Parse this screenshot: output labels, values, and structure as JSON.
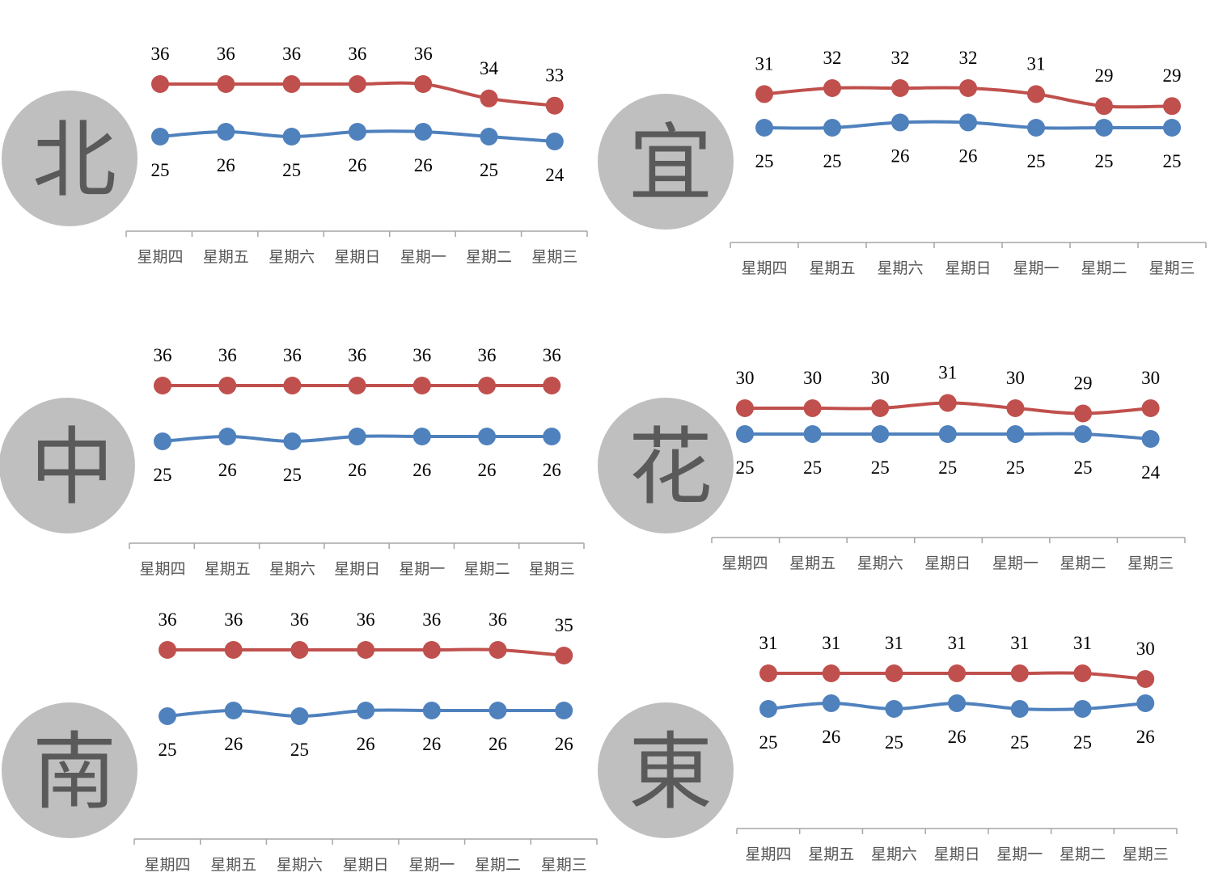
{
  "colors": {
    "high": "#c0504d",
    "low": "#4f81bd",
    "badge": "#bfbfbf",
    "axis": "#a6a6a6"
  },
  "chart_data": [
    {
      "type": "line",
      "region": "北",
      "categories": [
        "星期四",
        "星期五",
        "星期六",
        "星期日",
        "星期一",
        "星期二",
        "星期三"
      ],
      "series": [
        {
          "values": [
            36,
            36,
            36,
            36,
            36,
            34,
            33
          ]
        },
        {
          "values": [
            25,
            26,
            25,
            26,
            26,
            25,
            24
          ]
        }
      ]
    },
    {
      "type": "line",
      "region": "宜",
      "categories": [
        "星期四",
        "星期五",
        "星期六",
        "星期日",
        "星期一",
        "星期二",
        "星期三"
      ],
      "series": [
        {
          "values": [
            31,
            32,
            32,
            32,
            31,
            29,
            29
          ]
        },
        {
          "values": [
            25,
            25,
            26,
            26,
            25,
            25,
            25
          ]
        }
      ]
    },
    {
      "type": "line",
      "region": "中",
      "categories": [
        "星期四",
        "星期五",
        "星期六",
        "星期日",
        "星期一",
        "星期二",
        "星期三"
      ],
      "series": [
        {
          "values": [
            36,
            36,
            36,
            36,
            36,
            36,
            36
          ]
        },
        {
          "values": [
            25,
            26,
            25,
            26,
            26,
            26,
            26
          ]
        }
      ]
    },
    {
      "type": "line",
      "region": "花",
      "categories": [
        "星期四",
        "星期五",
        "星期六",
        "星期日",
        "星期一",
        "星期二",
        "星期三"
      ],
      "series": [
        {
          "values": [
            30,
            30,
            30,
            31,
            30,
            29,
            30
          ]
        },
        {
          "values": [
            25,
            25,
            25,
            25,
            25,
            25,
            24
          ]
        }
      ]
    },
    {
      "type": "line",
      "region": "南",
      "categories": [
        "星期四",
        "星期五",
        "星期六",
        "星期日",
        "星期一",
        "星期二",
        "星期三"
      ],
      "series": [
        {
          "values": [
            36,
            36,
            36,
            36,
            36,
            36,
            35
          ]
        },
        {
          "values": [
            25,
            26,
            25,
            26,
            26,
            26,
            26
          ]
        }
      ]
    },
    {
      "type": "line",
      "region": "東",
      "categories": [
        "星期四",
        "星期五",
        "星期六",
        "星期日",
        "星期一",
        "星期二",
        "星期三"
      ],
      "series": [
        {
          "values": [
            31,
            31,
            31,
            31,
            31,
            31,
            30
          ]
        },
        {
          "values": [
            25,
            26,
            25,
            26,
            25,
            25,
            26
          ]
        }
      ]
    }
  ]
}
